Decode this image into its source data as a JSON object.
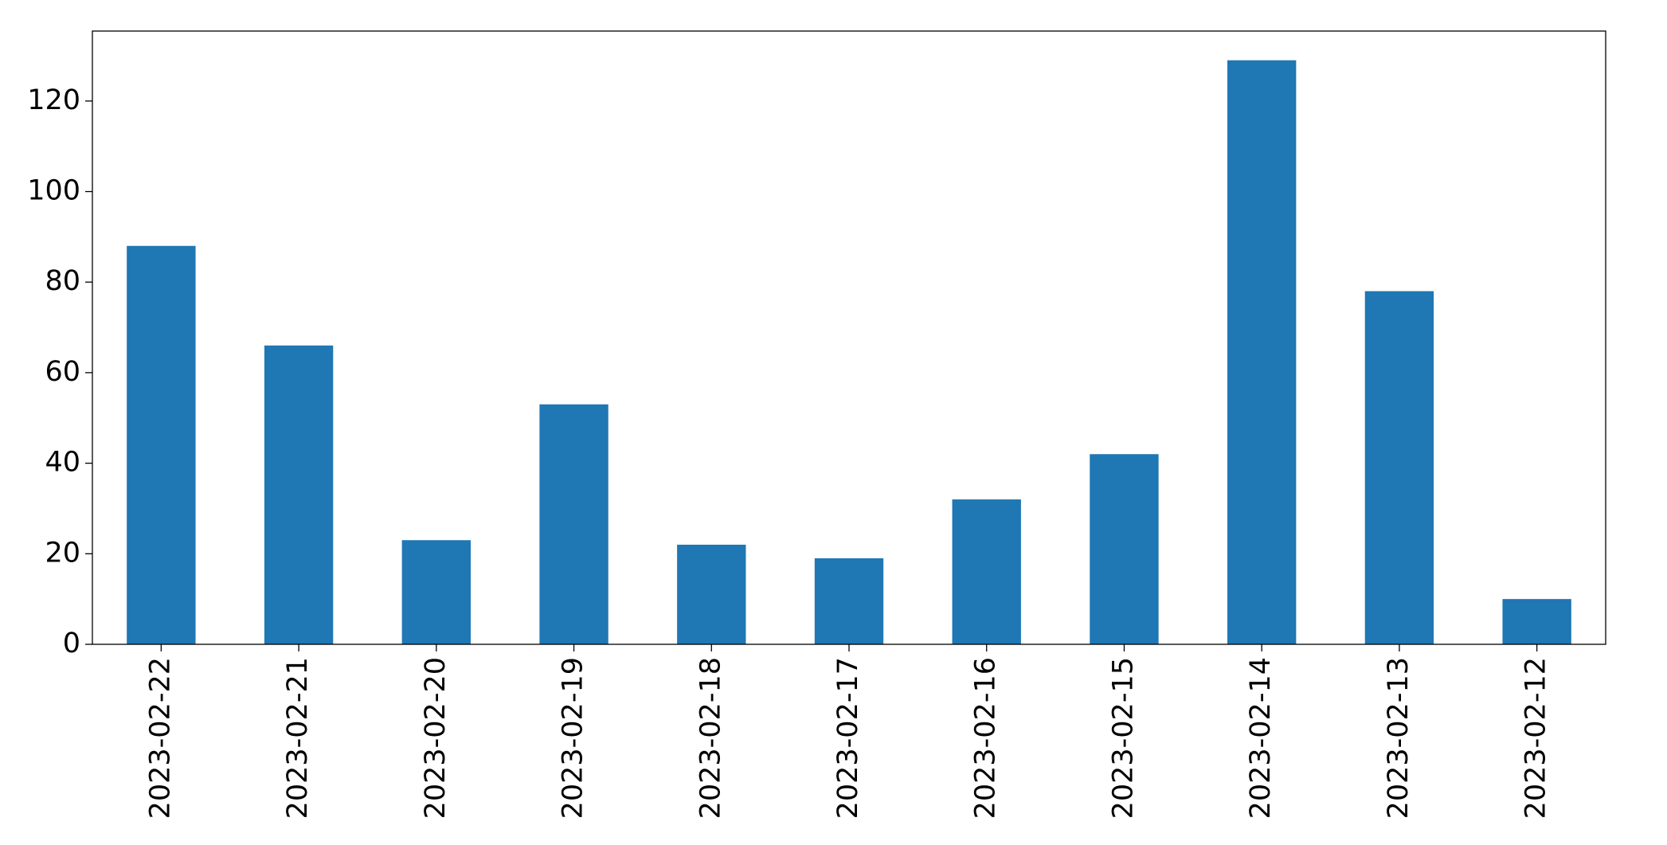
{
  "chart_data": {
    "type": "bar",
    "categories": [
      "2023-02-22",
      "2023-02-21",
      "2023-02-20",
      "2023-02-19",
      "2023-02-18",
      "2023-02-17",
      "2023-02-16",
      "2023-02-15",
      "2023-02-14",
      "2023-02-13",
      "2023-02-12"
    ],
    "values": [
      88,
      66,
      23,
      53,
      22,
      19,
      32,
      42,
      129,
      78,
      10
    ],
    "color": "#1f77b4",
    "ylim": [
      0,
      135.45
    ],
    "yticks": [
      0,
      20,
      40,
      60,
      80,
      100,
      120
    ],
    "grid": false
  }
}
